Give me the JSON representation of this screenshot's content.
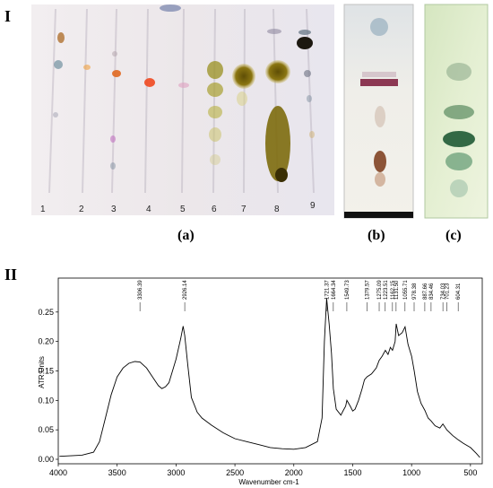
{
  "figure": {
    "part_I_label": "I",
    "part_II_label": "II",
    "sub_a": "(a)",
    "sub_b": "(b)",
    "sub_c": "(c)",
    "lanes": [
      "1",
      "2",
      "3",
      "4",
      "5",
      "6",
      "7",
      "8",
      "9"
    ],
    "colors": {
      "plate_bg": "#eeeaec",
      "olive": "#7a6a10",
      "green_plate": "#dbe9c9",
      "spectrum": "#000000"
    }
  },
  "chart_data": {
    "type": "line",
    "xlabel": "Wavenumber cm-1",
    "ylabel": "ATR Units",
    "xlim": [
      4000,
      400
    ],
    "ylim": [
      0,
      0.3
    ],
    "x_ticks": [
      "4000",
      "3500",
      "3000",
      "2500",
      "2000",
      "1500",
      "1000",
      "500"
    ],
    "y_ticks": [
      "0.00",
      "0.05",
      "0.10",
      "0.15",
      "0.20",
      "0.25"
    ],
    "peak_labels": [
      "3306.39",
      "2926.14",
      "1721.37",
      "1664.34",
      "1549.73",
      "1379.57",
      "1275.09",
      "1223.51",
      "1162.15",
      "1131.50",
      "1055.71",
      "978.38",
      "887.66",
      "834.46",
      "734.03",
      "701.23",
      "604.31"
    ],
    "series": [
      {
        "x": [
          3990,
          3800,
          3700,
          3650,
          3600,
          3550,
          3500,
          3450,
          3400,
          3350,
          3306,
          3250,
          3200,
          3150,
          3120,
          3090,
          3060,
          3000,
          2960,
          2940,
          2926,
          2900,
          2870,
          2850,
          2820,
          2780,
          2700,
          2600,
          2500,
          2400,
          2300,
          2200,
          2100,
          2000,
          1900,
          1800,
          1760,
          1740,
          1721,
          1700,
          1680,
          1664,
          1640,
          1600,
          1580,
          1560,
          1549,
          1520,
          1500,
          1480,
          1450,
          1420,
          1400,
          1379,
          1340,
          1300,
          1275,
          1250,
          1223,
          1200,
          1180,
          1162,
          1140,
          1131,
          1110,
          1080,
          1055,
          1030,
          1000,
          978,
          950,
          920,
          887,
          860,
          834,
          800,
          760,
          734,
          701,
          650,
          604,
          560,
          500,
          450,
          420
        ],
        "values": [
          0.005,
          0.007,
          0.012,
          0.03,
          0.07,
          0.11,
          0.14,
          0.155,
          0.163,
          0.166,
          0.165,
          0.155,
          0.14,
          0.125,
          0.12,
          0.123,
          0.13,
          0.17,
          0.205,
          0.226,
          0.21,
          0.16,
          0.105,
          0.095,
          0.08,
          0.07,
          0.058,
          0.045,
          0.035,
          0.03,
          0.025,
          0.02,
          0.018,
          0.017,
          0.02,
          0.03,
          0.07,
          0.2,
          0.273,
          0.23,
          0.18,
          0.12,
          0.085,
          0.075,
          0.083,
          0.09,
          0.1,
          0.09,
          0.082,
          0.085,
          0.1,
          0.12,
          0.135,
          0.14,
          0.145,
          0.155,
          0.168,
          0.175,
          0.185,
          0.178,
          0.19,
          0.185,
          0.2,
          0.23,
          0.21,
          0.215,
          0.225,
          0.195,
          0.175,
          0.15,
          0.115,
          0.095,
          0.083,
          0.07,
          0.065,
          0.057,
          0.053,
          0.06,
          0.05,
          0.04,
          0.033,
          0.027,
          0.02,
          0.01,
          0.003
        ]
      }
    ]
  }
}
